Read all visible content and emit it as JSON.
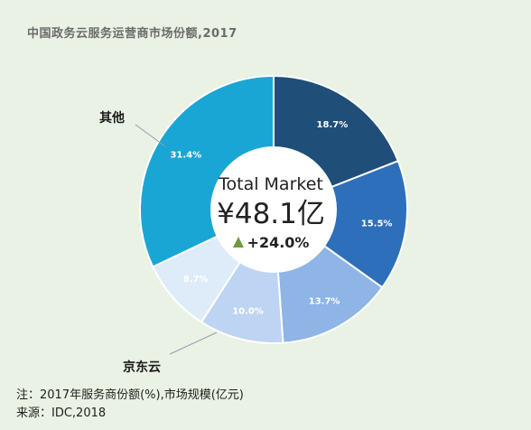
{
  "chart_data": {
    "type": "pie",
    "title": "中国政务云服务运营商市场份额,2017",
    "slices": [
      {
        "label": "",
        "value": 18.7,
        "display": "18.7%",
        "color": "#1f4e79"
      },
      {
        "label": "",
        "value": 15.5,
        "display": "15.5%",
        "color": "#2e6fbb"
      },
      {
        "label": "",
        "value": 13.7,
        "display": "13.7%",
        "color": "#8fb4e6"
      },
      {
        "label": "京东云",
        "value": 10.0,
        "display": "10.0%",
        "color": "#bdd5f3"
      },
      {
        "label": "",
        "value": 8.7,
        "display": "8.7%",
        "color": "#deebf9"
      },
      {
        "label": "其他",
        "value": 31.4,
        "display": "31.4%",
        "color": "#1aa6d5"
      }
    ],
    "callouts": {
      "other": "其他",
      "jd": "京东云"
    },
    "center": {
      "label": "Total Market",
      "value": "¥48.1亿",
      "growth": "+24.0%"
    }
  },
  "notes": {
    "note": "注：2017年服务商份额(%),市场规模(亿元)",
    "source": "来源：IDC,2018"
  }
}
